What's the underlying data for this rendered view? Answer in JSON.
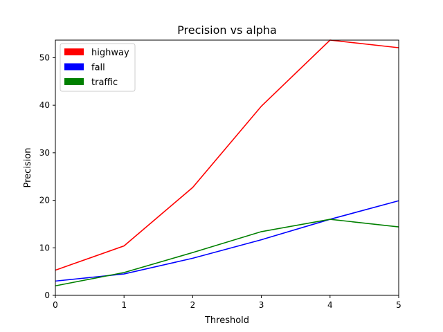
{
  "chart_data": {
    "type": "line",
    "title": "Precision vs alpha",
    "xlabel": "Threshold",
    "ylabel": "Precision",
    "xlim": [
      0,
      5
    ],
    "ylim": [
      0,
      53.7
    ],
    "xticks": [
      0,
      1,
      2,
      3,
      4,
      5
    ],
    "yticks": [
      0,
      10,
      20,
      30,
      40,
      50
    ],
    "x": [
      0,
      1,
      2,
      3,
      4,
      5
    ],
    "grid": false,
    "legend_position": "top-left",
    "series": [
      {
        "name": "highway",
        "color": "#ff0000",
        "values": [
          5.3,
          10.4,
          22.7,
          39.8,
          53.7,
          52.1
        ]
      },
      {
        "name": "fall",
        "color": "#0000ff",
        "values": [
          3.0,
          4.5,
          7.8,
          11.7,
          16.0,
          19.9
        ]
      },
      {
        "name": "traffic",
        "color": "#008000",
        "values": [
          2.0,
          4.8,
          9.0,
          13.4,
          16.0,
          14.4
        ]
      }
    ]
  }
}
